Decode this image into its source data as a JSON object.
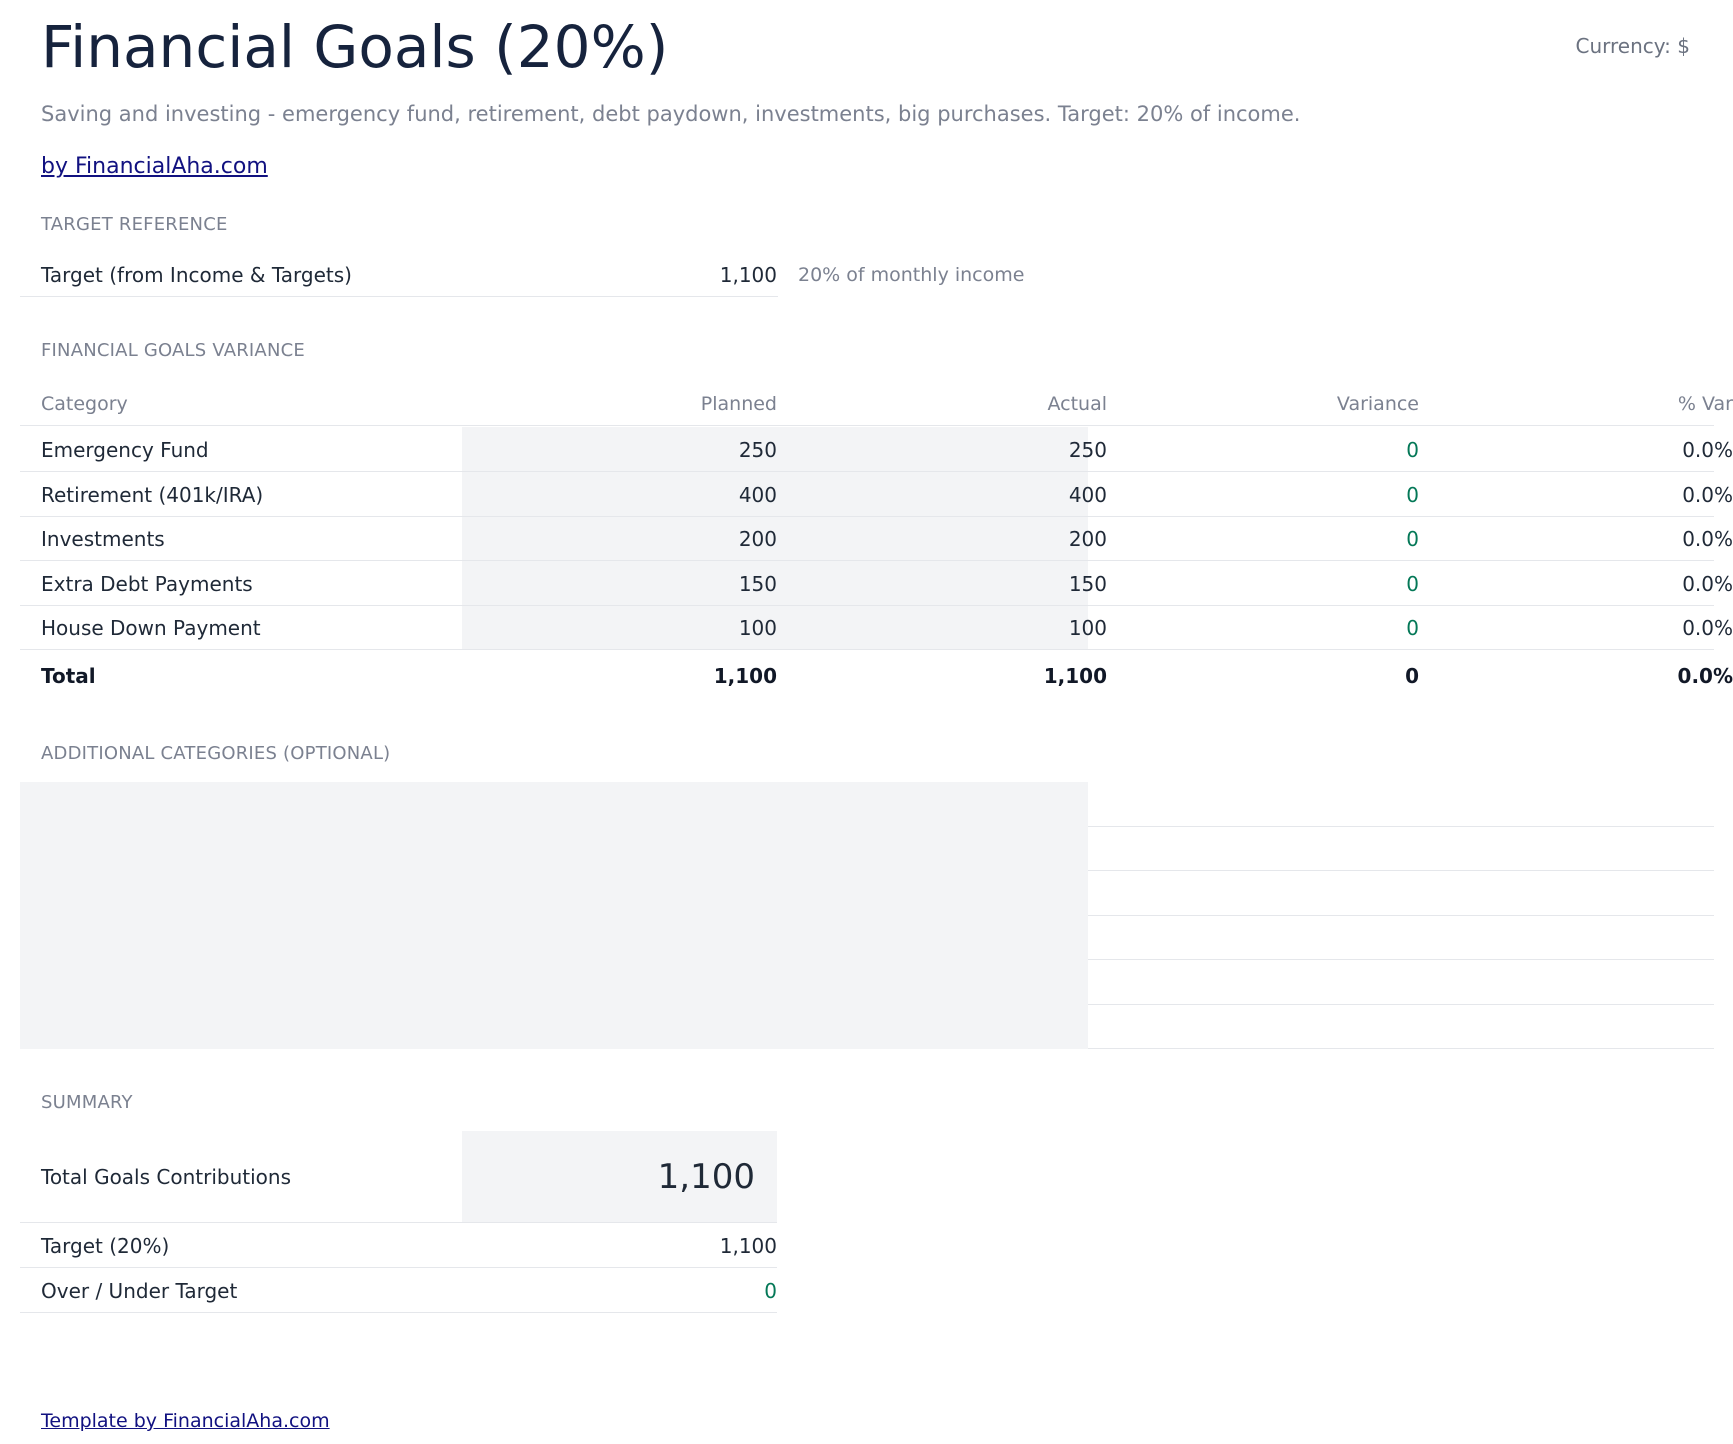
{
  "header": {
    "title": "Financial Goals (20%)",
    "currency": "Currency: $",
    "subtitle": "Saving and investing - emergency fund, retirement, debt paydown, investments, big purchases. Target: 20% of income.",
    "link": "by FinancialAha.com"
  },
  "target_reference": {
    "section_label": "TARGET REFERENCE",
    "label": "Target (from Income & Targets)",
    "value": "1,100",
    "note": "20% of monthly income"
  },
  "variance": {
    "section_label": "FINANCIAL GOALS VARIANCE",
    "columns": [
      "Category",
      "Planned",
      "Actual",
      "Variance",
      "% Var"
    ],
    "rows": [
      {
        "category": "Emergency Fund",
        "planned": "250",
        "actual": "250",
        "variance": "0",
        "pct": "0.0%"
      },
      {
        "category": "Retirement (401k/IRA)",
        "planned": "400",
        "actual": "400",
        "variance": "0",
        "pct": "0.0%"
      },
      {
        "category": "Investments",
        "planned": "200",
        "actual": "200",
        "variance": "0",
        "pct": "0.0%"
      },
      {
        "category": "Extra Debt Payments",
        "planned": "150",
        "actual": "150",
        "variance": "0",
        "pct": "0.0%"
      },
      {
        "category": "House Down Payment",
        "planned": "100",
        "actual": "100",
        "variance": "0",
        "pct": "0.0%"
      }
    ],
    "total": {
      "category": "Total",
      "planned": "1,100",
      "actual": "1,100",
      "variance": "0",
      "pct": "0.0%"
    }
  },
  "additional": {
    "section_label": "ADDITIONAL CATEGORIES (OPTIONAL)"
  },
  "summary": {
    "section_label": "SUMMARY",
    "total_label": "Total Goals Contributions",
    "total_value": "1,100",
    "target_label": "Target (20%)",
    "target_value": "1,100",
    "over_under_label": "Over / Under Target",
    "over_under_value": "0"
  },
  "footer": {
    "link": "Template by FinancialAha.com"
  }
}
